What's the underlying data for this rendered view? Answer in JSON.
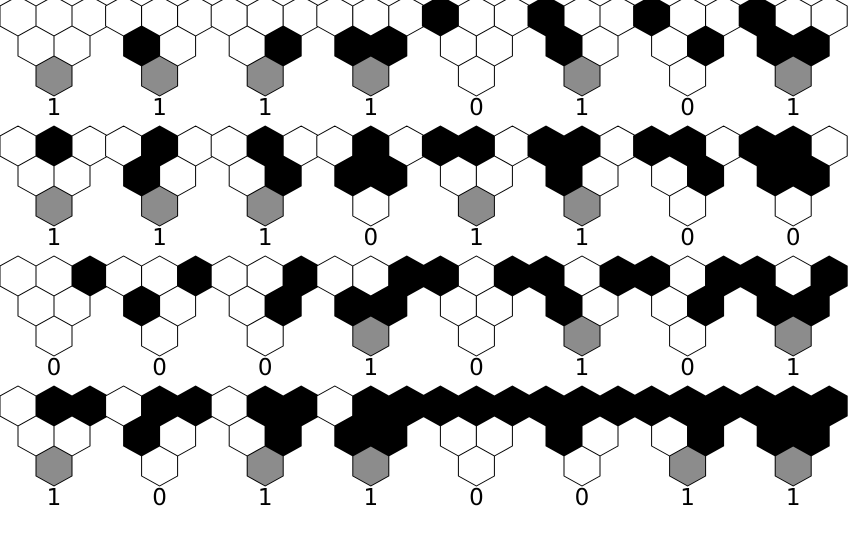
{
  "colors": {
    "on": "#000000",
    "off": "#ffffff",
    "result_on": "#8c8c8c",
    "result_off": "#ffffff",
    "stroke": "#000000"
  },
  "rules": [
    {
      "parents": [
        0,
        0,
        0
      ],
      "middle": [
        0,
        0
      ],
      "result": 1,
      "label": "1"
    },
    {
      "parents": [
        0,
        0,
        0
      ],
      "middle": [
        1,
        0
      ],
      "result": 1,
      "label": "1"
    },
    {
      "parents": [
        0,
        0,
        0
      ],
      "middle": [
        0,
        1
      ],
      "result": 1,
      "label": "1"
    },
    {
      "parents": [
        0,
        0,
        0
      ],
      "middle": [
        1,
        1
      ],
      "result": 1,
      "label": "1"
    },
    {
      "parents": [
        1,
        0,
        0
      ],
      "middle": [
        0,
        0
      ],
      "result": 0,
      "label": "0"
    },
    {
      "parents": [
        1,
        0,
        0
      ],
      "middle": [
        1,
        0
      ],
      "result": 1,
      "label": "1"
    },
    {
      "parents": [
        1,
        0,
        0
      ],
      "middle": [
        0,
        1
      ],
      "result": 0,
      "label": "0"
    },
    {
      "parents": [
        1,
        0,
        0
      ],
      "middle": [
        1,
        1
      ],
      "result": 1,
      "label": "1"
    },
    {
      "parents": [
        0,
        1,
        0
      ],
      "middle": [
        0,
        0
      ],
      "result": 1,
      "label": "1"
    },
    {
      "parents": [
        0,
        1,
        0
      ],
      "middle": [
        1,
        0
      ],
      "result": 1,
      "label": "1"
    },
    {
      "parents": [
        0,
        1,
        0
      ],
      "middle": [
        0,
        1
      ],
      "result": 1,
      "label": "1"
    },
    {
      "parents": [
        0,
        1,
        0
      ],
      "middle": [
        1,
        1
      ],
      "result": 0,
      "label": "0"
    },
    {
      "parents": [
        1,
        1,
        0
      ],
      "middle": [
        0,
        0
      ],
      "result": 1,
      "label": "1"
    },
    {
      "parents": [
        1,
        1,
        0
      ],
      "middle": [
        1,
        0
      ],
      "result": 1,
      "label": "1"
    },
    {
      "parents": [
        1,
        1,
        0
      ],
      "middle": [
        0,
        1
      ],
      "result": 0,
      "label": "0"
    },
    {
      "parents": [
        1,
        1,
        0
      ],
      "middle": [
        1,
        1
      ],
      "result": 0,
      "label": "0"
    },
    {
      "parents": [
        0,
        0,
        1
      ],
      "middle": [
        0,
        0
      ],
      "result": 0,
      "label": "0"
    },
    {
      "parents": [
        0,
        0,
        1
      ],
      "middle": [
        1,
        0
      ],
      "result": 0,
      "label": "0"
    },
    {
      "parents": [
        0,
        0,
        1
      ],
      "middle": [
        0,
        1
      ],
      "result": 0,
      "label": "0"
    },
    {
      "parents": [
        0,
        0,
        1
      ],
      "middle": [
        1,
        1
      ],
      "result": 1,
      "label": "1"
    },
    {
      "parents": [
        1,
        0,
        1
      ],
      "middle": [
        0,
        0
      ],
      "result": 0,
      "label": "0"
    },
    {
      "parents": [
        1,
        0,
        1
      ],
      "middle": [
        1,
        0
      ],
      "result": 1,
      "label": "1"
    },
    {
      "parents": [
        1,
        0,
        1
      ],
      "middle": [
        0,
        1
      ],
      "result": 0,
      "label": "0"
    },
    {
      "parents": [
        1,
        0,
        1
      ],
      "middle": [
        1,
        1
      ],
      "result": 1,
      "label": "1"
    },
    {
      "parents": [
        0,
        1,
        1
      ],
      "middle": [
        0,
        0
      ],
      "result": 1,
      "label": "1"
    },
    {
      "parents": [
        0,
        1,
        1
      ],
      "middle": [
        1,
        0
      ],
      "result": 0,
      "label": "0"
    },
    {
      "parents": [
        0,
        1,
        1
      ],
      "middle": [
        0,
        1
      ],
      "result": 1,
      "label": "1"
    },
    {
      "parents": [
        0,
        1,
        1
      ],
      "middle": [
        1,
        1
      ],
      "result": 1,
      "label": "1"
    },
    {
      "parents": [
        1,
        1,
        1
      ],
      "middle": [
        0,
        0
      ],
      "result": 0,
      "label": "0"
    },
    {
      "parents": [
        1,
        1,
        1
      ],
      "middle": [
        1,
        0
      ],
      "result": 0,
      "label": "0"
    },
    {
      "parents": [
        1,
        1,
        1
      ],
      "middle": [
        0,
        1
      ],
      "result": 1,
      "label": "1"
    },
    {
      "parents": [
        1,
        1,
        1
      ],
      "middle": [
        1,
        1
      ],
      "result": 1,
      "label": "1"
    }
  ]
}
